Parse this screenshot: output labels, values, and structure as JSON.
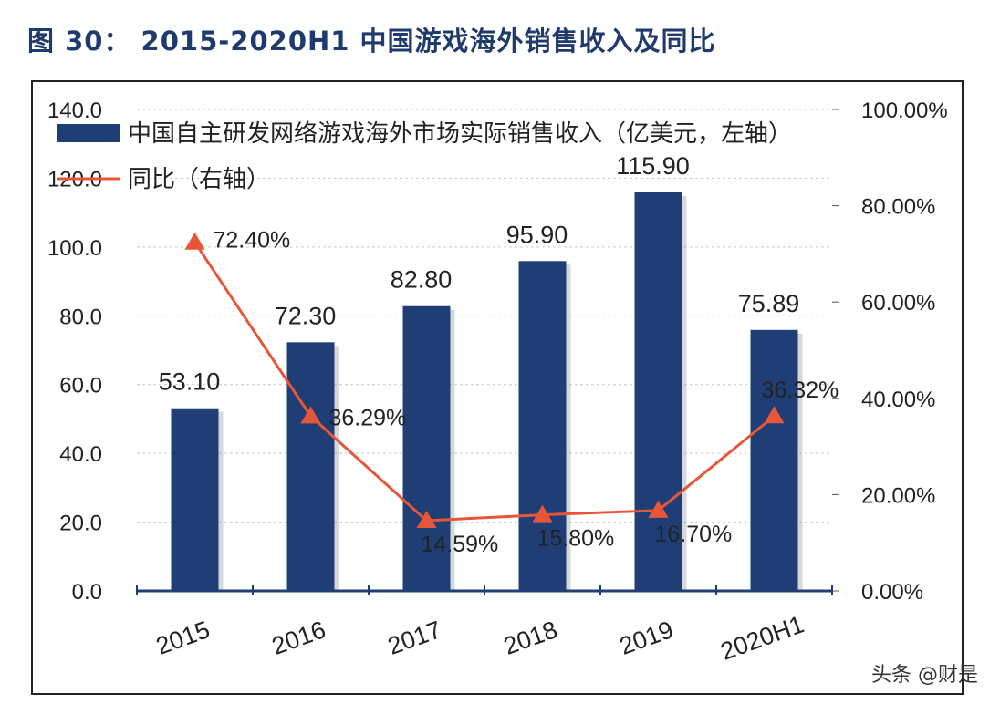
{
  "figure_title": "图 30： 2015-2020H1 中国游戏海外销售收入及同比",
  "watermark": "头条 @财是",
  "colors": {
    "bar": "#1f3e76",
    "line": "#e8563a",
    "grid": "#c9c9c9",
    "text": "#222222",
    "title": "#1f3a6d"
  },
  "chart_data": {
    "type": "bar",
    "title": "2015-2020H1 中国游戏海外销售收入及同比",
    "categories": [
      "2015",
      "2016",
      "2017",
      "2018",
      "2019",
      "2020H1"
    ],
    "series": [
      {
        "name": "中国自主研发网络游戏海外市场实际销售收入（亿美元，左轴）",
        "type": "bar",
        "axis": "left",
        "values": [
          53.1,
          72.3,
          82.8,
          95.9,
          115.9,
          75.89
        ],
        "labels": [
          "53.10",
          "72.30",
          "82.80",
          "95.90",
          "115.90",
          "75.89"
        ]
      },
      {
        "name": "同比（右轴）",
        "type": "line",
        "axis": "right",
        "values": [
          72.4,
          36.29,
          14.59,
          15.8,
          16.7,
          36.32
        ],
        "labels": [
          "72.40%",
          "36.29%",
          "14.59%",
          "15.80%",
          "16.70%",
          "36.32%"
        ]
      }
    ],
    "y_left": {
      "min": 0,
      "max": 140,
      "ticks": [
        "0.0",
        "20.0",
        "40.0",
        "60.0",
        "80.0",
        "100.0",
        "120.0",
        "140.0"
      ]
    },
    "y_right": {
      "min": 0,
      "max": 100,
      "ticks": [
        "0.00%",
        "20.00%",
        "40.00%",
        "60.00%",
        "80.00%",
        "100.00%"
      ]
    },
    "legend_position": "top-left",
    "grid": true
  }
}
